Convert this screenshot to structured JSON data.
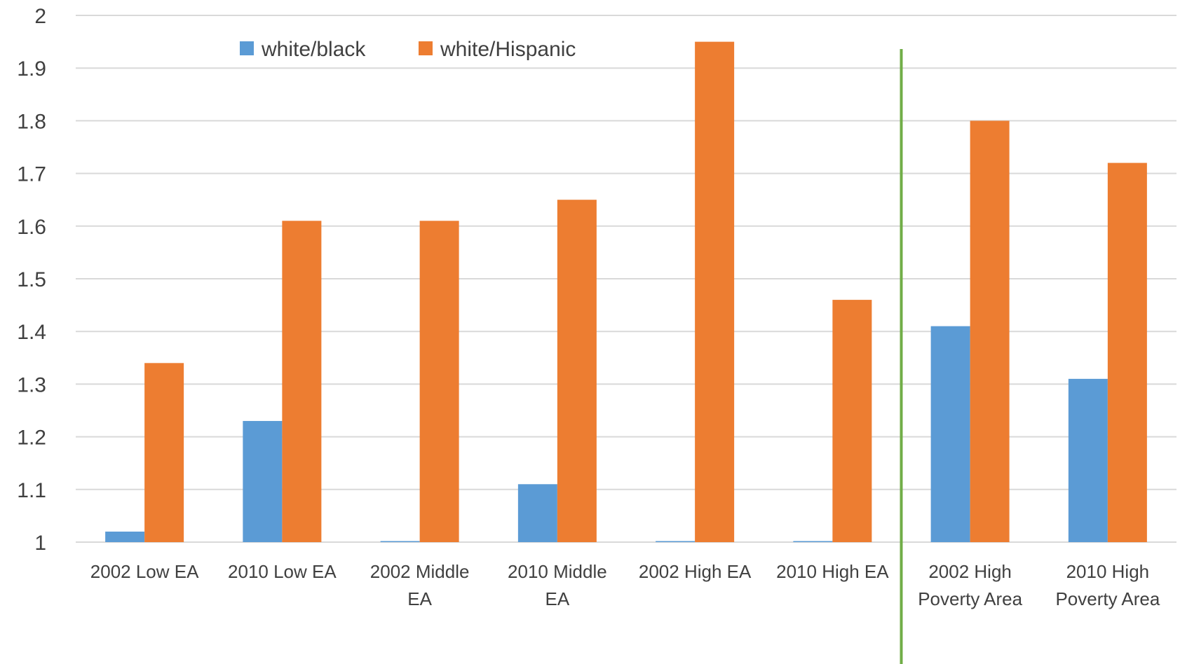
{
  "chart_data": {
    "type": "bar",
    "title": "",
    "xlabel": "",
    "ylabel": "",
    "ylim": [
      1,
      2
    ],
    "yticks": [
      "1",
      "1.1",
      "1.2",
      "1.3",
      "1.4",
      "1.5",
      "1.6",
      "1.7",
      "1.8",
      "1.9",
      "2"
    ],
    "grid": true,
    "legend_position": "top-left",
    "categories": [
      [
        "2002 Low EA"
      ],
      [
        "2010 Low EA"
      ],
      [
        "2002 Middle",
        "EA"
      ],
      [
        "2010 Middle",
        "EA"
      ],
      [
        "2002 High EA"
      ],
      [
        "2010 High EA"
      ],
      [
        "2002 High",
        "Poverty Area"
      ],
      [
        "2010 High",
        "Poverty Area"
      ]
    ],
    "series": [
      {
        "name": "white/black",
        "color": "#5b9bd5",
        "values": [
          1.02,
          1.23,
          1.0,
          1.11,
          1.0,
          1.0,
          1.41,
          1.31
        ]
      },
      {
        "name": "white/Hispanic",
        "color": "#ed7d31",
        "values": [
          1.34,
          1.61,
          1.61,
          1.65,
          1.95,
          1.46,
          1.8,
          1.72
        ]
      }
    ],
    "annotations": [
      {
        "type": "vertical-separator",
        "between_categories": [
          5,
          6
        ],
        "color": "#70ad47"
      }
    ]
  }
}
